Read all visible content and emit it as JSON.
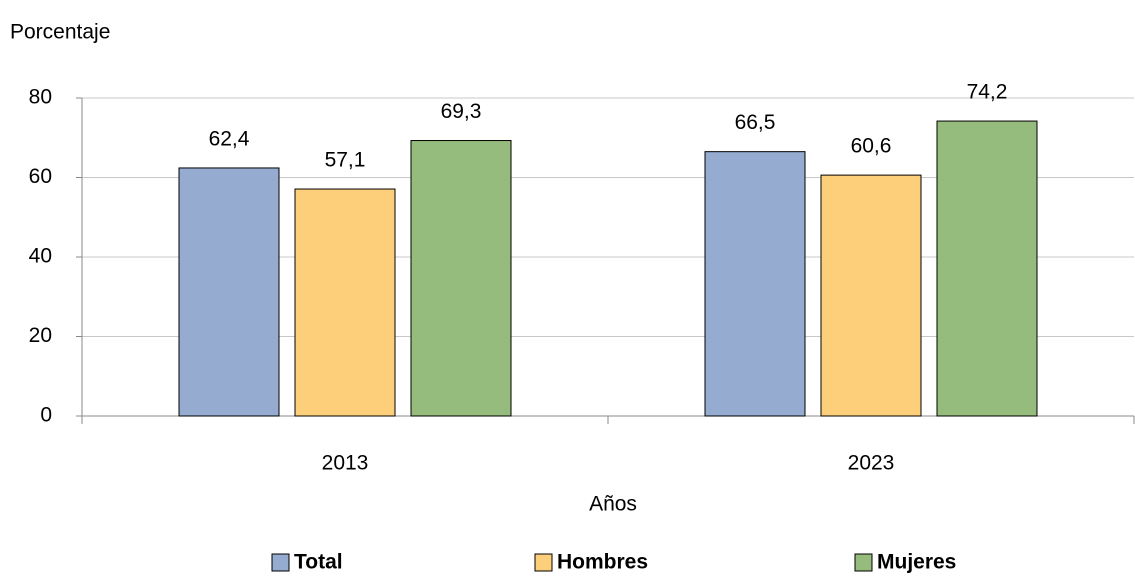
{
  "chart_data": {
    "type": "bar",
    "y_axis_label": "Porcentaje",
    "x_axis_label": "Años",
    "categories": [
      "2013",
      "2023"
    ],
    "series": [
      {
        "name": "Total",
        "color": "#95abd0",
        "values": [
          62.4,
          66.5
        ],
        "value_labels": [
          "62,4",
          "66,5"
        ]
      },
      {
        "name": "Hombres",
        "color": "#fecf7a",
        "values": [
          57.1,
          60.6
        ],
        "value_labels": [
          "57,1",
          "60,6"
        ]
      },
      {
        "name": "Mujeres",
        "color": "#95bb7d",
        "values": [
          69.3,
          74.2
        ],
        "value_labels": [
          "69,3",
          "74,2"
        ]
      }
    ],
    "ylim": [
      0,
      80
    ],
    "yticks": [
      0,
      20,
      40,
      60,
      80
    ],
    "grid": true,
    "legend": "bottom"
  }
}
